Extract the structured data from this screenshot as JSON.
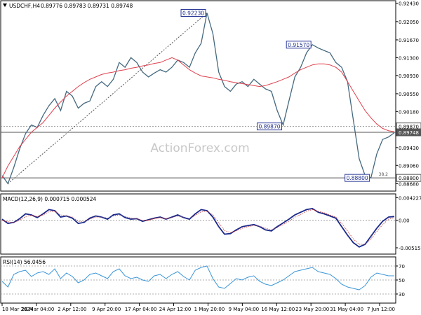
{
  "chart_data": [
    {
      "type": "line",
      "panel": "price",
      "title": "USDCHF,H4",
      "ohlc": [
        0.89776,
        0.89783,
        0.89731,
        0.89748
      ],
      "ylim": [
        0.8854,
        0.9247
      ],
      "y_ticks": [
        "0.92430",
        "0.92050",
        "0.91670",
        "0.91300",
        "0.90930",
        "0.90550",
        "0.90180",
        "0.89430",
        "0.89060",
        "0.88680"
      ],
      "x_ticks": [
        "18 Mar 2024",
        "26 Mar 04:00",
        "2 Apr 12:00",
        "9 Apr 20:00",
        "17 Apr 04:00",
        "24 Apr 12:00",
        "1 May 20:00",
        "9 May 04:00",
        "16 May 12:00",
        "23 May 20:00",
        "31 May 04:00",
        "7 Jun 12:00"
      ],
      "series": [
        {
          "name": "",
          "color": "#44697f",
          "values": [
            0.8885,
            0.8868,
            0.8902,
            0.894,
            0.8972,
            0.899,
            0.8985,
            0.901,
            0.903,
            0.9045,
            0.902,
            0.906,
            0.905,
            0.9025,
            0.9035,
            0.904,
            0.907,
            0.908,
            0.907,
            0.9085,
            0.912,
            0.911,
            0.913,
            0.912,
            0.91,
            0.909,
            0.9098,
            0.9105,
            0.91,
            0.911,
            0.9125,
            0.912,
            0.911,
            0.914,
            0.916,
            0.9223,
            0.918,
            0.91,
            0.907,
            0.906,
            0.9075,
            0.908,
            0.907,
            0.9085,
            0.9075,
            0.9065,
            0.906,
            0.902,
            0.899,
            0.904,
            0.909,
            0.911,
            0.914,
            0.9157,
            0.915,
            0.9145,
            0.914,
            0.912,
            0.911,
            0.908,
            0.9,
            0.892,
            0.8885,
            0.888,
            0.893,
            0.896,
            0.8965,
            0.8974
          ]
        },
        {
          "name": "",
          "color": "#e0414e",
          "values": [
            0.888,
            0.8905,
            0.8925,
            0.8945,
            0.896,
            0.8975,
            0.8985,
            0.8995,
            0.901,
            0.9025,
            0.9038,
            0.905,
            0.906,
            0.907,
            0.9078,
            0.9085,
            0.909,
            0.9095,
            0.9098,
            0.91,
            0.9103,
            0.9105,
            0.9108,
            0.911,
            0.9113,
            0.9115,
            0.9118,
            0.912,
            0.9125,
            0.913,
            0.9125,
            0.9115,
            0.9105,
            0.9098,
            0.9092,
            0.909,
            0.9088,
            0.9085,
            0.9083,
            0.908,
            0.9078,
            0.9076,
            0.9074,
            0.9072,
            0.907,
            0.9072,
            0.9076,
            0.908,
            0.9085,
            0.909,
            0.9098,
            0.9105,
            0.911,
            0.9115,
            0.9117,
            0.9117,
            0.9115,
            0.911,
            0.91,
            0.908,
            0.906,
            0.904,
            0.902,
            0.9005,
            0.8992,
            0.8983,
            0.8978,
            0.8976
          ]
        }
      ],
      "levels": [
        {
          "label": "0.89870",
          "value": 0.8987
        },
        {
          "label": "0.89748",
          "value": 0.89748
        },
        {
          "label": "0.88800",
          "value": 0.888
        }
      ],
      "annotations": [
        {
          "label": "0.92230",
          "value": 0.9223,
          "x_index": 35
        },
        {
          "label": "0.91570",
          "value": 0.9157,
          "x_index": 53
        },
        {
          "label": "0.89870",
          "value": 0.8987,
          "x_index": 48
        },
        {
          "label": "0.88800",
          "value": 0.888,
          "x_index": 63
        }
      ],
      "fib_label": "38.2"
    },
    {
      "type": "line",
      "panel": "macd",
      "title": "MACD(12,26,9) 0.000715 0.000524",
      "ylim": [
        -0.0062,
        0.0048
      ],
      "y_ticks": [
        "0.004227",
        "0.00",
        "-0.005153"
      ],
      "series": [
        {
          "name": "",
          "color": "#1a2a8c",
          "values": [
            0.0002,
            -0.0006,
            -0.0004,
            0.0003,
            0.0012,
            0.001,
            0.0005,
            0.0012,
            0.002,
            0.0018,
            0.0006,
            0.0008,
            0.0004,
            -0.0006,
            -0.0004,
            0.0004,
            0.0008,
            0.0006,
            0.0002,
            0.001,
            0.0012,
            0.0005,
            0.0002,
            0.0003,
            -0.0002,
            0.0001,
            0.0004,
            0.0006,
            0.0002,
            0.0006,
            0.001,
            0.0005,
            0.0002,
            0.0012,
            0.002,
            0.0018,
            0.0006,
            -0.0012,
            -0.0026,
            -0.0025,
            -0.0018,
            -0.0012,
            -0.001,
            -0.0008,
            -0.0012,
            -0.0018,
            -0.002,
            -0.0012,
            -0.0005,
            0.0002,
            0.001,
            0.0015,
            0.002,
            0.0022,
            0.0015,
            0.0012,
            0.0008,
            0.0004,
            -0.0012,
            -0.0028,
            -0.0042,
            -0.005,
            -0.0045,
            -0.003,
            -0.0015,
            -0.0002,
            0.0006,
            0.0007
          ]
        },
        {
          "name": "",
          "color": "#c23a3a",
          "values": [
            0.0,
            -0.0003,
            -0.0004,
            0.0,
            0.0007,
            0.0009,
            0.0007,
            0.001,
            0.0016,
            0.0017,
            0.001,
            0.0008,
            0.0006,
            -0.0002,
            -0.0003,
            0.0002,
            0.0006,
            0.0006,
            0.0004,
            0.0008,
            0.001,
            0.0007,
            0.0004,
            0.0003,
            0.0,
            0.0,
            0.0003,
            0.0005,
            0.0003,
            0.0005,
            0.0008,
            0.0006,
            0.0003,
            0.0009,
            0.0016,
            0.0017,
            0.001,
            -0.0005,
            -0.0019,
            -0.0023,
            -0.002,
            -0.0015,
            -0.0012,
            -0.001,
            -0.0011,
            -0.0015,
            -0.0018,
            -0.0014,
            -0.0008,
            -0.0002,
            0.0006,
            0.0011,
            0.0017,
            0.002,
            0.0017,
            0.0014,
            0.001,
            0.0006,
            -0.0006,
            -0.002,
            -0.0035,
            -0.0045,
            -0.0045,
            -0.0035,
            -0.0021,
            -0.0008,
            0.0002,
            0.0005
          ]
        }
      ]
    },
    {
      "type": "line",
      "panel": "rsi",
      "title": "RSI(14) 56.0456",
      "ylim": [
        18,
        82
      ],
      "y_ticks": [
        "70",
        "50",
        "30"
      ],
      "series": [
        {
          "name": "",
          "color": "#3a95d8",
          "values": [
            48,
            40,
            58,
            62,
            64,
            55,
            60,
            62,
            58,
            66,
            52,
            60,
            55,
            46,
            50,
            58,
            60,
            56,
            52,
            62,
            66,
            56,
            52,
            54,
            50,
            48,
            56,
            58,
            52,
            58,
            62,
            55,
            50,
            64,
            68,
            70,
            52,
            40,
            38,
            45,
            52,
            50,
            54,
            56,
            48,
            44,
            42,
            46,
            50,
            56,
            62,
            64,
            66,
            68,
            62,
            60,
            58,
            52,
            44,
            40,
            38,
            36,
            42,
            54,
            60,
            58,
            56,
            56
          ]
        }
      ]
    }
  ],
  "watermark": "ActionForex.com"
}
